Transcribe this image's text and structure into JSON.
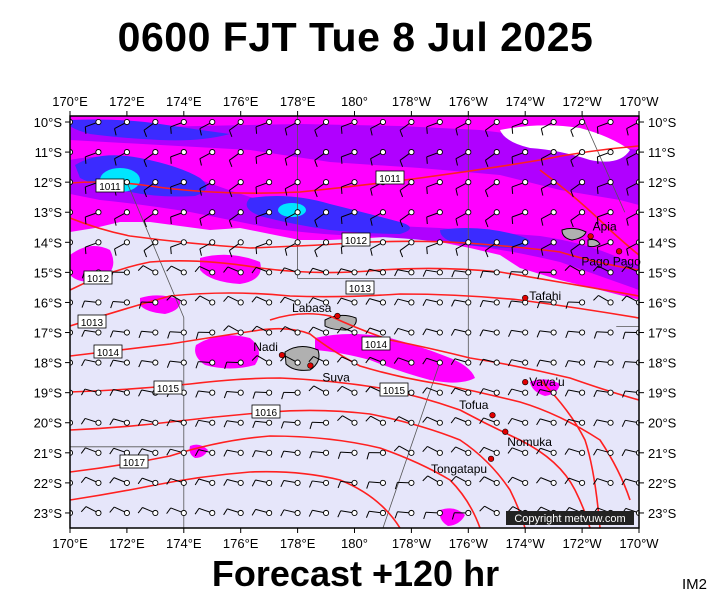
{
  "title": "0600 FJT Tue 8 Jul 2025",
  "footer": "Forecast +120 hr",
  "corner_label": "IM2",
  "copyright": "Copyright metvuw.com",
  "colors": {
    "ocean": "#e6e6fa",
    "rain_light": "#ff00ff",
    "rain_mid": "#b000ff",
    "rain_heavy": "#3b2bff",
    "rain_extreme": "#00e5ff",
    "isobar": "#ff2020",
    "land": "#b0b0b0"
  },
  "axes": {
    "lon_labels": [
      "170°E",
      "172°E",
      "174°E",
      "176°E",
      "178°E",
      "180°",
      "178°W",
      "176°W",
      "174°W",
      "172°W",
      "170°W"
    ],
    "lat_labels": [
      "10°S",
      "11°S",
      "12°S",
      "13°S",
      "14°S",
      "15°S",
      "16°S",
      "17°S",
      "18°S",
      "19°S",
      "20°S",
      "21°S",
      "22°S",
      "23°S"
    ]
  },
  "isobars": [
    "1011",
    "1011",
    "1012",
    "1012",
    "1013",
    "1013",
    "1014",
    "1014",
    "1015",
    "1015",
    "1016",
    "1017"
  ],
  "places": [
    {
      "name": "Apia",
      "lon": 188.3,
      "lat": -13.8
    },
    {
      "name": "Pago Pago",
      "lon": 189.3,
      "lat": -14.3
    },
    {
      "name": "Tafahi",
      "lon": 186.0,
      "lat": -15.85
    },
    {
      "name": "Labasa",
      "lon": 179.4,
      "lat": -16.45
    },
    {
      "name": "Nadi",
      "lon": 177.45,
      "lat": -17.75
    },
    {
      "name": "Suva",
      "lon": 178.45,
      "lat": -18.1
    },
    {
      "name": "Vava'u",
      "lon": 186.0,
      "lat": -18.65
    },
    {
      "name": "Tofua",
      "lon": 184.85,
      "lat": -19.75
    },
    {
      "name": "Nomuka",
      "lon": 185.3,
      "lat": -20.3
    },
    {
      "name": "Tongatapu",
      "lon": 184.8,
      "lat": -21.2
    }
  ]
}
